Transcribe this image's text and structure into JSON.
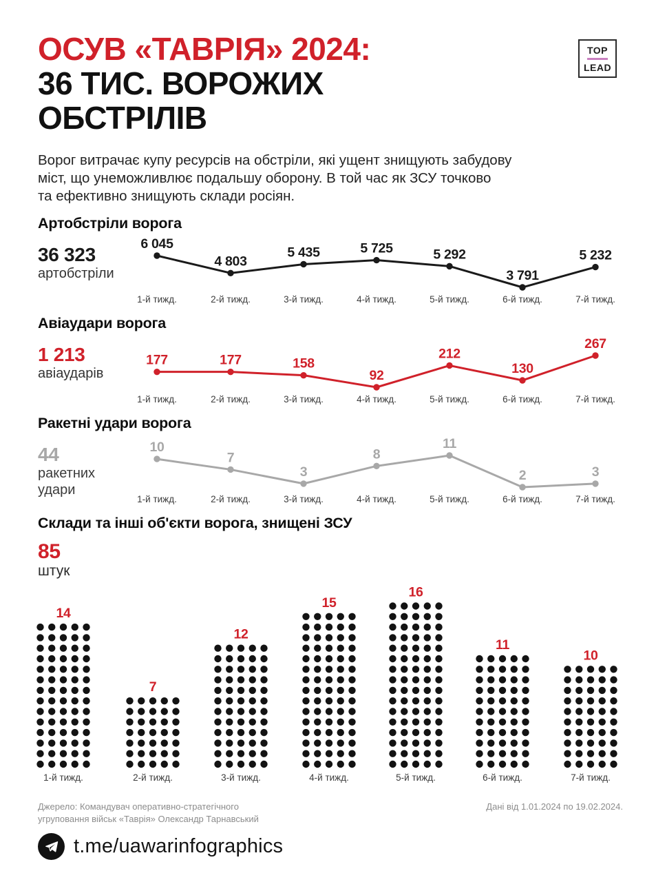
{
  "logo": {
    "top": "TOP",
    "lead": "LEAD",
    "divider_color": "#c97fc0"
  },
  "header": {
    "title_red": "ОСУВ «ТАВРІЯ» 2024:",
    "title_black_line1": "36 ТИС. ВОРОЖИХ",
    "title_black_line2": "ОБСТРІЛІВ"
  },
  "intro_lines": [
    "Ворог витрачає купу ресурсів на обстріли, які ущент знищують забудову",
    "міст, що унеможливлює подальшу оборону. В той час як ЗСУ точково",
    "та ефективно знищують склади росіян."
  ],
  "colors": {
    "red": "#d0212a",
    "black": "#1a1a1a",
    "gray": "#a8a8a8",
    "week_label": "#3c3c3c"
  },
  "chart_data": [
    {
      "type": "line",
      "title": "Артобстріли ворога",
      "total_value": "36 323",
      "total_label": "артобстріли",
      "color": "#1a1a1a",
      "categories": [
        "1-й тижд.",
        "2-й тижд.",
        "3-й тижд.",
        "4-й тижд.",
        "5-й тижд.",
        "6-й тижд.",
        "7-й тижд."
      ],
      "values": [
        6045,
        4803,
        5435,
        5725,
        5292,
        3791,
        5232
      ],
      "value_labels": [
        "6 045",
        "4 803",
        "5 435",
        "5 725",
        "5 292",
        "3 791",
        "5 232"
      ]
    },
    {
      "type": "line",
      "title": "Авіаудари ворога",
      "total_value": "1 213",
      "total_label": "авіаударів",
      "color": "#d0212a",
      "categories": [
        "1-й тижд.",
        "2-й тижд.",
        "3-й тижд.",
        "4-й тижд.",
        "5-й тижд.",
        "6-й тижд.",
        "7-й тижд."
      ],
      "values": [
        177,
        177,
        158,
        92,
        212,
        130,
        267
      ],
      "value_labels": [
        "177",
        "177",
        "158",
        "92",
        "212",
        "130",
        "267"
      ]
    },
    {
      "type": "line",
      "title": "Ракетні удари ворога",
      "total_value": "44",
      "total_label": "ракетних\nудари",
      "color": "#a8a8a8",
      "categories": [
        "1-й тижд.",
        "2-й тижд.",
        "3-й тижд.",
        "4-й тижд.",
        "5-й тижд.",
        "6-й тижд.",
        "7-й тижд."
      ],
      "values": [
        10,
        7,
        3,
        8,
        11,
        2,
        3
      ],
      "value_labels": [
        "10",
        "7",
        "3",
        "8",
        "11",
        "2",
        "3"
      ]
    },
    {
      "type": "pictogram_bar",
      "title": "Склади та інші об'єкти ворога, знищені ЗСУ",
      "total_value": "85",
      "total_label": "штук",
      "dot_color": "#131313",
      "label_color": "#d0212a",
      "dots_per_row": 5,
      "categories": [
        "1-й тижд.",
        "2-й тижд.",
        "3-й тижд.",
        "4-й тижд.",
        "5-й тижд.",
        "6-й тижд.",
        "7-й тижд."
      ],
      "values": [
        14,
        7,
        12,
        15,
        16,
        11,
        10
      ]
    }
  ],
  "source": {
    "line1": "Джерело: Командувач оперативно-стратегічного",
    "line2": "угруповання військ «Таврія» Олександр Тарнавський",
    "date_note": "Дані від 1.01.2024 по 19.02.2024."
  },
  "footer": {
    "handle": "t.me/uawarinfographics"
  }
}
